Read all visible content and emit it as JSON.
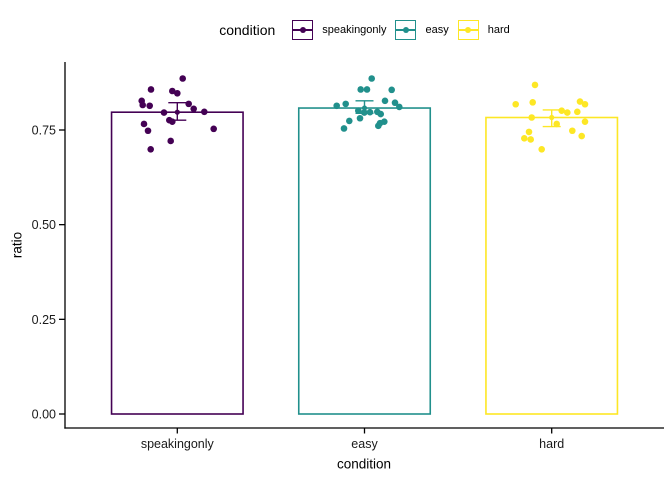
{
  "legend": {
    "title": "condition",
    "entries": [
      {
        "label": "speakingonly",
        "color": "#440154"
      },
      {
        "label": "easy",
        "color": "#21908C"
      },
      {
        "label": "hard",
        "color": "#FDE725"
      }
    ]
  },
  "chart_data": {
    "type": "bar",
    "title": "",
    "xlabel": "condition",
    "ylabel": "ratio",
    "categories": [
      "speakingonly",
      "easy",
      "hard"
    ],
    "colors": [
      "#440154",
      "#21908C",
      "#FDE725"
    ],
    "ylim": [
      0,
      0.93
    ],
    "yticks": [
      0,
      0.25,
      0.5,
      0.75
    ],
    "ytick_labels": [
      "0.00",
      "0.25",
      "0.50",
      "0.75"
    ],
    "grid": false,
    "legend_position": "top",
    "series": [
      {
        "name": "speakingonly",
        "mean": 0.797,
        "se_upper": 0.822,
        "se_lower": 0.776,
        "points": [
          [
            5.4,
            0.886
          ],
          [
            -26.3,
            0.857
          ],
          [
            -5.0,
            0.853
          ],
          [
            0.0,
            0.847
          ],
          [
            -35.6,
            0.827
          ],
          [
            -34.6,
            0.816
          ],
          [
            -27.6,
            0.814
          ],
          [
            11.4,
            0.819
          ],
          [
            16.4,
            0.806
          ],
          [
            -13.3,
            0.796
          ],
          [
            27.0,
            0.798
          ],
          [
            -8.0,
            0.776
          ],
          [
            -5.0,
            0.772
          ],
          [
            -33.3,
            0.766
          ],
          [
            -29.3,
            0.748
          ],
          [
            36.4,
            0.753
          ],
          [
            -6.6,
            0.721
          ],
          [
            -26.6,
            0.699
          ]
        ]
      },
      {
        "name": "easy",
        "mean": 0.808,
        "se_upper": 0.827,
        "se_lower": 0.794,
        "points": [
          [
            7.2,
            0.886
          ],
          [
            -3.8,
            0.857
          ],
          [
            2.5,
            0.857
          ],
          [
            27.2,
            0.856
          ],
          [
            20.5,
            0.827
          ],
          [
            30.5,
            0.822
          ],
          [
            -27.8,
            0.814
          ],
          [
            -18.8,
            0.819
          ],
          [
            34.8,
            0.811
          ],
          [
            -6.2,
            0.801
          ],
          [
            -0.2,
            0.796
          ],
          [
            5.5,
            0.797
          ],
          [
            12.8,
            0.798
          ],
          [
            16.2,
            0.792
          ],
          [
            -4.5,
            0.781
          ],
          [
            -15.2,
            0.774
          ],
          [
            15.5,
            0.768
          ],
          [
            19.8,
            0.772
          ],
          [
            -20.5,
            0.754
          ],
          [
            13.8,
            0.761
          ]
        ]
      },
      {
        "name": "hard",
        "mean": 0.783,
        "se_upper": 0.803,
        "se_lower": 0.759,
        "points": [
          [
            -16.7,
            0.869
          ],
          [
            -36.0,
            0.818
          ],
          [
            -19.0,
            0.823
          ],
          [
            10.0,
            0.801
          ],
          [
            15.6,
            0.796
          ],
          [
            25.6,
            0.798
          ],
          [
            28.3,
            0.825
          ],
          [
            33.3,
            0.818
          ],
          [
            -20.0,
            0.783
          ],
          [
            5.0,
            0.766
          ],
          [
            33.3,
            0.772
          ],
          [
            20.6,
            0.748
          ],
          [
            30.0,
            0.734
          ],
          [
            -22.7,
            0.745
          ],
          [
            -27.4,
            0.728
          ],
          [
            -21.0,
            0.725
          ],
          [
            -10.0,
            0.699
          ]
        ]
      }
    ]
  }
}
